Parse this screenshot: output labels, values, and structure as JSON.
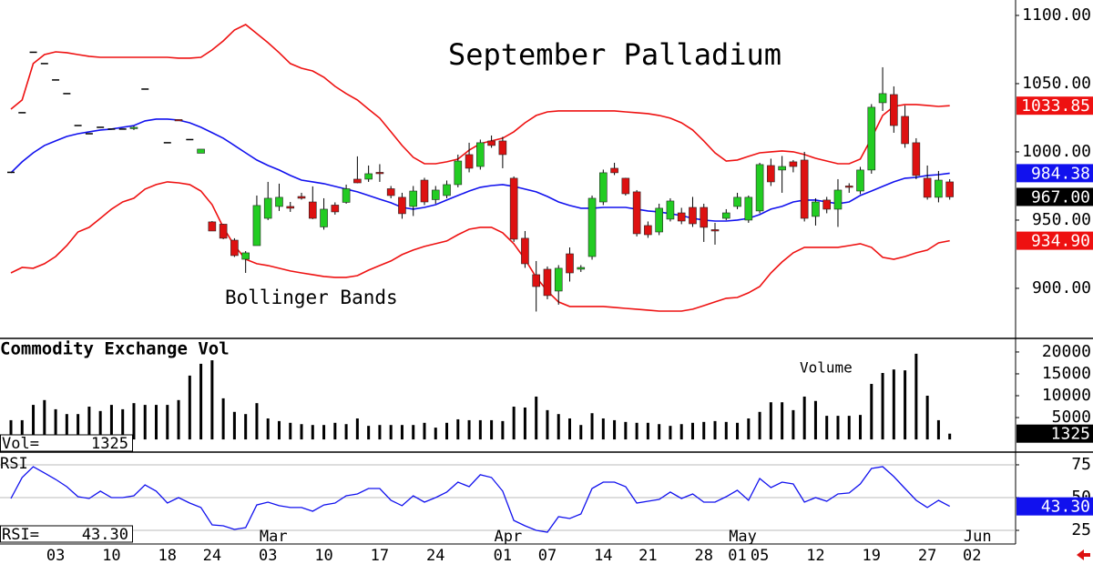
{
  "chart_data": [
    {
      "type": "candlestick",
      "title": "September Palladium",
      "annotation": "Bollinger Bands",
      "ylim": [
        863.3,
        1111.3
      ],
      "yticks": [
        {
          "value": 1100,
          "label": "1100.00"
        },
        {
          "value": 1050,
          "label": "1050.00"
        },
        {
          "value": 1000,
          "label": "1000.00"
        },
        {
          "value": 950,
          "label": "950.00"
        },
        {
          "value": 900,
          "label": "900.00"
        }
      ],
      "up_color": "#22cc22",
      "down_color": "#dd1111",
      "close_badge_color": "#000000",
      "close_label": "967.00",
      "open": [
        985,
        1028.7,
        1073,
        1064.7,
        1052.7,
        1042.7,
        1019.3,
        1013.3,
        1018,
        1016.7,
        1016.7,
        1017,
        1046,
        null,
        1006.7,
        1023.7,
        1009,
        999,
        948.7,
        947,
        935.3,
        921.3,
        931.3,
        951.3,
        960,
        960,
        967.3,
        963.3,
        945,
        961,
        963,
        980,
        980,
        985,
        973,
        966.7,
        960,
        979.3,
        965,
        968,
        976,
        998,
        989.3,
        1008,
        1008,
        980.7,
        936.7,
        910,
        914,
        898,
        925.3,
        914,
        923.3,
        963.3,
        988,
        980.7,
        970.7,
        946,
        941.3,
        950.7,
        955.3,
        959.3,
        959.3,
        943,
        951.3,
        960,
        950,
        956.7,
        990,
        986.7,
        992.7,
        994,
        952.7,
        964.7,
        958,
        975,
        971.3,
        986.7,
        1036,
        1042,
        1026,
        1006.7,
        980.7,
        966.7,
        978,
        null,
        null
      ],
      "high": [
        985,
        1028.7,
        1073,
        1064.7,
        1052.7,
        1042.7,
        1019.3,
        1013.3,
        1018,
        1016.7,
        1016.7,
        1019,
        1046,
        null,
        1006.7,
        1023.7,
        1009,
        1002,
        949.3,
        947.3,
        936.7,
        927.3,
        968,
        978,
        976.7,
        963.3,
        970,
        974.7,
        966,
        963,
        976,
        996.7,
        990,
        991,
        975,
        970,
        975,
        981,
        975,
        979,
        998,
        1006.7,
        1009,
        1012,
        1011,
        982,
        942,
        920,
        916,
        917,
        930,
        917,
        968,
        987,
        992,
        981,
        972,
        949,
        962,
        966,
        959,
        967,
        962,
        948,
        958,
        970,
        968,
        992,
        995,
        997,
        994,
        1000,
        966,
        967,
        980,
        977,
        989,
        1035,
        1062,
        1048,
        1034,
        1010,
        990,
        986,
        980,
        null,
        null
      ],
      "low": [
        985,
        1028.7,
        1073,
        1064.7,
        1052.7,
        1042.7,
        1019.3,
        1013.3,
        1018,
        1016.7,
        1016.7,
        1016,
        1046,
        null,
        1006.7,
        1022.7,
        1009,
        999,
        942,
        936,
        923,
        911.3,
        931.3,
        950,
        956.7,
        956,
        965,
        950.7,
        943,
        954,
        962,
        977,
        978,
        978,
        966,
        951,
        953,
        961,
        962,
        966,
        974,
        985,
        987,
        1003,
        988,
        934,
        915,
        883,
        892,
        888,
        905,
        912,
        921,
        961,
        983,
        968,
        938,
        937,
        939,
        949,
        947,
        945,
        934,
        932,
        950,
        958,
        948,
        955,
        975,
        970,
        985,
        949,
        946,
        955,
        945,
        970,
        969,
        984,
        1030,
        1014,
        1003,
        980,
        965,
        963,
        965,
        null,
        null
      ],
      "close": [
        985,
        1028.7,
        1073,
        1064.7,
        1052.7,
        1042.7,
        1019.3,
        1013.3,
        1018,
        1016.7,
        1016.7,
        1018,
        1046,
        null,
        1006.7,
        1022.7,
        1009,
        1002,
        942,
        936.7,
        924,
        926,
        960.7,
        966,
        966.7,
        958.7,
        966,
        951.3,
        958,
        956,
        973,
        977.3,
        984,
        984,
        968,
        954.7,
        971.3,
        963.3,
        972,
        976,
        993.3,
        988,
        1006.7,
        1004.7,
        998,
        936,
        918,
        901.3,
        894.7,
        914.7,
        911.3,
        915.3,
        966,
        984.7,
        984.7,
        969.3,
        940,
        939.3,
        958.7,
        964,
        949.3,
        947.3,
        944.7,
        942,
        955.3,
        966.7,
        966.7,
        990.7,
        978,
        989.3,
        989.3,
        951.3,
        963.3,
        958,
        972,
        974,
        986.7,
        1032.7,
        1042.7,
        1019.3,
        1006,
        982.7,
        966.7,
        979.3,
        967,
        null,
        null
      ],
      "series": [
        {
          "color": "#ee1111",
          "last_label": "1033.85",
          "values": [
            1031.3,
            1038,
            1064.7,
            1071.3,
            1073.3,
            1072.7,
            1071.3,
            1070,
            1069.3,
            1069.3,
            1069.3,
            1069.3,
            1069.3,
            1069.3,
            1069.3,
            1068.7,
            1068.7,
            1069.3,
            1074.7,
            1081.3,
            1089.3,
            1093.3,
            1086.7,
            1080,
            1072.7,
            1064.7,
            1061.3,
            1059.3,
            1054.7,
            1048,
            1042.7,
            1038,
            1031.3,
            1024.7,
            1014.7,
            1004.7,
            996,
            991.3,
            991.3,
            992.7,
            994.7,
            1001.3,
            1006,
            1008,
            1010,
            1014.7,
            1021.3,
            1026.7,
            1029.3,
            1030,
            1030,
            1030,
            1030,
            1030,
            1030,
            1029.3,
            1028.7,
            1028,
            1026.7,
            1024.7,
            1021.3,
            1016,
            1008,
            999.3,
            993.3,
            994,
            996.7,
            999.3,
            1000,
            1000.7,
            1000,
            998,
            995.3,
            993.3,
            991.3,
            991.3,
            994.7,
            1010,
            1026.7,
            1033.3,
            1034.7,
            1034.7,
            1034,
            1033.3,
            1033.85,
            null,
            null
          ]
        },
        {
          "color": "#1111ee",
          "last_label": "984.38",
          "values": [
            984.7,
            992.7,
            999.3,
            1004.7,
            1008,
            1011.3,
            1013.3,
            1014.7,
            1016,
            1016.7,
            1018,
            1019.3,
            1022.7,
            1024,
            1024,
            1023.3,
            1021.3,
            1018,
            1014,
            1010,
            1004.7,
            999.3,
            994,
            990,
            986.7,
            982.7,
            979.3,
            978,
            976.7,
            974.7,
            972.7,
            970.7,
            968,
            965.3,
            962.7,
            959.3,
            958,
            959.3,
            961.3,
            964.7,
            968,
            971.3,
            974,
            975.3,
            976,
            974.7,
            972.7,
            970.7,
            967.3,
            963.3,
            960.7,
            958.7,
            958.7,
            959.3,
            959.3,
            959.3,
            958,
            956.7,
            956,
            954.7,
            953.3,
            951.3,
            950,
            949.3,
            949.3,
            950,
            951.3,
            954,
            958,
            960,
            963.3,
            964.7,
            964.7,
            963.3,
            962,
            963.3,
            968,
            971.3,
            974.7,
            978,
            980.7,
            981.3,
            982.7,
            983.3,
            984.38,
            null,
            null
          ]
        },
        {
          "color": "#ee1111",
          "last_label": "934.90",
          "values": [
            911.3,
            915.3,
            914.7,
            918,
            923.3,
            931.3,
            941.3,
            944.7,
            951.3,
            958,
            963.3,
            966,
            972.7,
            976,
            978,
            977.3,
            976,
            971.3,
            961.3,
            944.7,
            931.3,
            921.3,
            918,
            916.7,
            914.7,
            912.7,
            911.3,
            910,
            908.7,
            908,
            908,
            909.3,
            913.3,
            916.7,
            920,
            924.7,
            928,
            930.7,
            932.7,
            934.7,
            939.3,
            943.3,
            944.7,
            944.7,
            940.7,
            932.7,
            921.3,
            908,
            898,
            890,
            886.7,
            886.7,
            886.7,
            886.7,
            886,
            885.3,
            884.7,
            884,
            883.3,
            883.3,
            883.3,
            884.7,
            887.3,
            890,
            892.7,
            893.3,
            896.7,
            901.3,
            911.3,
            919.3,
            926,
            930,
            930,
            930,
            930,
            931.3,
            932.7,
            930,
            922.7,
            921.3,
            923.3,
            926,
            928,
            933.3,
            934.9,
            null,
            null
          ]
        }
      ]
    },
    {
      "type": "bar",
      "title": "Commodity Exchange Vol",
      "annotation": "Volume",
      "readout_label": "Vol=",
      "last_label": "1325",
      "color": "#000000",
      "ylim": [
        -2900,
        22900
      ],
      "yticks": [
        20000,
        15000,
        10000,
        5000
      ],
      "values": [
        4400,
        4400,
        7900,
        9000,
        6900,
        5800,
        5800,
        7500,
        6500,
        7900,
        6900,
        8300,
        7900,
        7900,
        7900,
        9000,
        14600,
        17300,
        18100,
        9400,
        6300,
        5800,
        8300,
        4800,
        4200,
        3800,
        3500,
        3300,
        3300,
        3800,
        3500,
        4800,
        3100,
        3300,
        3300,
        3300,
        3300,
        3800,
        2700,
        3800,
        4600,
        4400,
        4400,
        4400,
        4200,
        7500,
        7300,
        9800,
        6700,
        5800,
        4800,
        3300,
        6000,
        4800,
        4400,
        4000,
        3800,
        3800,
        3500,
        3100,
        3500,
        3800,
        4000,
        4200,
        4000,
        3800,
        4800,
        6300,
        8500,
        8500,
        6700,
        9800,
        8800,
        5400,
        5400,
        5400,
        5600,
        12700,
        15200,
        16000,
        15800,
        19600,
        10000,
        4400,
        1325,
        null,
        null
      ]
    },
    {
      "type": "line",
      "title": "RSI",
      "readout_label": "RSI=",
      "last_label": "43.30",
      "color": "#1111ee",
      "grid": true,
      "ylim": [
        14.6,
        84
      ],
      "yticks": [
        75,
        50,
        25
      ],
      "values": [
        49.3,
        65.3,
        73.6,
        68.8,
        63.9,
        58.3,
        50.7,
        49.3,
        54.9,
        50,
        50,
        51.4,
        59.7,
        54.9,
        45.8,
        50,
        45.8,
        42.4,
        29.2,
        28.5,
        25.7,
        27.1,
        44.4,
        46.5,
        43.8,
        42.4,
        42.4,
        39.6,
        44.4,
        45.8,
        51.4,
        52.8,
        56.9,
        56.9,
        47.9,
        43.8,
        51.4,
        46.5,
        50,
        54.2,
        61.8,
        58.3,
        67.4,
        65.3,
        54.9,
        32.6,
        28.5,
        25,
        23.6,
        35.4,
        34,
        37.5,
        56.9,
        61.8,
        61.8,
        58.3,
        45.8,
        47.2,
        48.6,
        54.2,
        49.3,
        52.8,
        46.5,
        46.5,
        50.7,
        55.6,
        47.9,
        64.6,
        57.6,
        61.8,
        60.4,
        46.5,
        50,
        47.2,
        52.8,
        53.5,
        60.4,
        72.2,
        73.6,
        66,
        56.9,
        47.9,
        42.4,
        47.9,
        43.3,
        null,
        null
      ],
      "categories": [
        null,
        null,
        null,
        null,
        "03",
        null,
        null,
        null,
        null,
        "10",
        null,
        null,
        null,
        null,
        "18",
        null,
        null,
        null,
        "24",
        null,
        null,
        null,
        null,
        "03",
        null,
        null,
        null,
        null,
        "10",
        null,
        null,
        null,
        null,
        "17",
        null,
        null,
        null,
        null,
        "24",
        null,
        null,
        null,
        null,
        null,
        "01",
        null,
        null,
        null,
        "07",
        null,
        null,
        null,
        null,
        "14",
        null,
        null,
        null,
        "21",
        null,
        null,
        null,
        null,
        "28",
        null,
        null,
        "01",
        null,
        "05",
        null,
        null,
        null,
        null,
        "12",
        null,
        null,
        null,
        null,
        "19",
        null,
        null,
        null,
        null,
        "27",
        null,
        null,
        null,
        "02"
      ],
      "months": [
        null,
        null,
        null,
        null,
        null,
        null,
        null,
        null,
        null,
        null,
        null,
        null,
        null,
        null,
        null,
        null,
        null,
        null,
        null,
        null,
        null,
        null,
        null,
        "Mar",
        null,
        null,
        null,
        null,
        null,
        null,
        null,
        null,
        null,
        null,
        null,
        null,
        null,
        null,
        null,
        null,
        null,
        null,
        null,
        null,
        "Apr",
        null,
        null,
        null,
        null,
        null,
        null,
        null,
        null,
        null,
        null,
        null,
        null,
        null,
        null,
        null,
        null,
        null,
        null,
        null,
        null,
        "May",
        null,
        null,
        null,
        null,
        null,
        null,
        null,
        null,
        null,
        null,
        null,
        null,
        null,
        null,
        null,
        null,
        null,
        null,
        null,
        null,
        "Jun"
      ]
    }
  ]
}
